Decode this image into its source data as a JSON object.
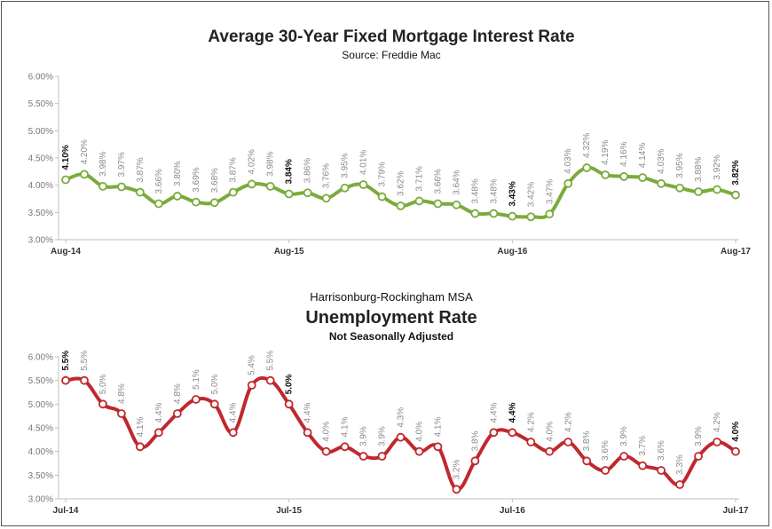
{
  "chart_data": [
    {
      "type": "line",
      "title": "Average 30-Year Fixed Mortgage Interest Rate",
      "subtitle": "Source: Freddie Mac",
      "subtitle2": "",
      "ylim": [
        3.0,
        6.0
      ],
      "y_ticks": [
        "3.00%",
        "3.50%",
        "4.00%",
        "4.50%",
        "5.00%",
        "5.50%",
        "6.00%"
      ],
      "x_ticks": [
        {
          "index": 0,
          "label": "Aug-14"
        },
        {
          "index": 12,
          "label": "Aug-15"
        },
        {
          "index": 24,
          "label": "Aug-16"
        },
        {
          "index": 36,
          "label": "Aug-17"
        }
      ],
      "color": "#7aab3c",
      "values": [
        4.1,
        4.2,
        3.98,
        3.97,
        3.87,
        3.66,
        3.8,
        3.69,
        3.68,
        3.87,
        4.02,
        3.98,
        3.84,
        3.86,
        3.76,
        3.95,
        4.01,
        3.79,
        3.62,
        3.71,
        3.66,
        3.64,
        3.48,
        3.48,
        3.43,
        3.42,
        3.47,
        4.03,
        4.32,
        4.19,
        4.16,
        4.14,
        4.03,
        3.95,
        3.88,
        3.92,
        3.82
      ],
      "labels": [
        "4.10%",
        "4.20%",
        "3.98%",
        "3.97%",
        "3.87%",
        "3.66%",
        "3.80%",
        "3.69%",
        "3.68%",
        "3.87%",
        "4.02%",
        "3.98%",
        "3.84%",
        "3.86%",
        "3.76%",
        "3.95%",
        "4.01%",
        "3.79%",
        "3.62%",
        "3.71%",
        "3.66%",
        "3.64%",
        "3.48%",
        "3.48%",
        "3.43%",
        "3.42%",
        "3.47%",
        "4.03%",
        "4.32%",
        "4.19%",
        "4.16%",
        "4.14%",
        "4.03%",
        "3.95%",
        "3.88%",
        "3.92%",
        "3.82%"
      ],
      "highlight": [
        0,
        12,
        24,
        36
      ],
      "grid": false
    },
    {
      "type": "line",
      "title": "Unemployment Rate",
      "supertitle": "Harrisonburg-Rockingham MSA",
      "subtitle": "Not Seasonally Adjusted",
      "ylim": [
        3.0,
        6.0
      ],
      "y_ticks": [
        "3.00%",
        "3.50%",
        "4.00%",
        "4.50%",
        "5.00%",
        "5.50%",
        "6.00%"
      ],
      "x_ticks": [
        {
          "index": 0,
          "label": "Jul-14"
        },
        {
          "index": 12,
          "label": "Jul-15"
        },
        {
          "index": 24,
          "label": "Jul-16"
        },
        {
          "index": 36,
          "label": "Jul-17"
        }
      ],
      "color": "#c0282d",
      "values": [
        5.5,
        5.5,
        5.0,
        4.8,
        4.1,
        4.4,
        4.8,
        5.1,
        5.0,
        4.4,
        5.4,
        5.5,
        5.0,
        4.4,
        4.0,
        4.1,
        3.9,
        3.9,
        4.3,
        4.0,
        4.1,
        3.2,
        3.8,
        4.4,
        4.4,
        4.2,
        4.0,
        4.2,
        3.8,
        3.6,
        3.9,
        3.7,
        3.6,
        3.3,
        3.9,
        4.2,
        4.0
      ],
      "labels": [
        "5.5%",
        "5.5%",
        "5.0%",
        "4.8%",
        "4.1%",
        "4.4%",
        "4.8%",
        "5.1%",
        "5.0%",
        "4.4%",
        "5.4%",
        "5.5%",
        "5.0%",
        "4.4%",
        "4.0%",
        "4.1%",
        "3.9%",
        "3.9%",
        "4.3%",
        "4.0%",
        "4.1%",
        "3.2%",
        "3.8%",
        "4.4%",
        "4.4%",
        "4.2%",
        "4.0%",
        "4.2%",
        "3.8%",
        "3.6%",
        "3.9%",
        "3.7%",
        "3.6%",
        "3.3%",
        "3.9%",
        "4.2%",
        "4.0%"
      ],
      "highlight": [
        0,
        12,
        24,
        36
      ],
      "grid": false
    }
  ]
}
